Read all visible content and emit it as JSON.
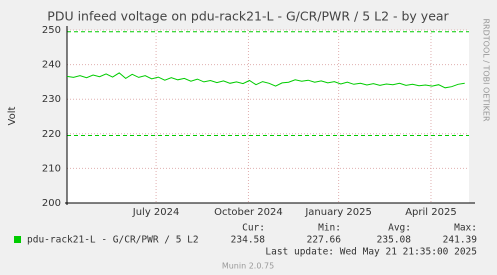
{
  "chart_data": {
    "type": "line",
    "title": "PDU infeed voltage on pdu-rack21-L - G/CR/PWR / 5 L2 - by year",
    "y_label": "Volt",
    "side_label": "RRDTOOL / TOBI OETIKER",
    "x": [
      0,
      6,
      12,
      18,
      24,
      30,
      36,
      42,
      48,
      54,
      60,
      66,
      72,
      78,
      84,
      90,
      96,
      102,
      108,
      114,
      120,
      126,
      132,
      138,
      144,
      150,
      156,
      162,
      168,
      174,
      180,
      186,
      192,
      198,
      204,
      210,
      216,
      222,
      228,
      234,
      240,
      246,
      252,
      258,
      264,
      270,
      276,
      282,
      288,
      294,
      300,
      306,
      312,
      318,
      324,
      330,
      336,
      342,
      348,
      354,
      360,
      366
    ],
    "series": [
      {
        "name": "pdu-rack21-L - G/CR/PWR / 5 L2",
        "color": "#00cc00",
        "values": [
          236.6,
          236.3,
          236.8,
          236.2,
          237.0,
          236.5,
          237.3,
          236.4,
          237.6,
          236.0,
          237.2,
          236.3,
          236.8,
          235.9,
          236.4,
          235.5,
          236.2,
          235.6,
          236.0,
          235.2,
          235.8,
          235.0,
          235.4,
          234.8,
          235.3,
          234.6,
          235.0,
          234.5,
          235.4,
          234.2,
          235.1,
          234.6,
          233.8,
          234.7,
          234.9,
          235.6,
          235.2,
          235.5,
          234.9,
          235.3,
          234.7,
          235.1,
          234.4,
          234.9,
          234.3,
          234.6,
          234.1,
          234.5,
          234.0,
          234.4,
          234.2,
          234.6,
          234.0,
          234.3,
          233.9,
          234.1,
          233.8,
          234.2,
          233.3,
          233.6,
          234.3,
          234.6
        ]
      }
    ],
    "thresholds": [
      249.5,
      219.5
    ],
    "threshold_color": "#00cc00",
    "xlim": [
      0,
      370
    ],
    "xticks": [
      {
        "value": 82,
        "label": "July 2024"
      },
      {
        "value": 167,
        "label": "October 2024"
      },
      {
        "value": 250,
        "label": "January 2025"
      },
      {
        "value": 335,
        "label": "April 2025"
      }
    ],
    "ylim": [
      200,
      250
    ],
    "yticks": [
      200,
      210,
      220,
      230,
      240,
      250
    ],
    "grid": true,
    "legend_headers": [
      "Cur:",
      "Min:",
      "Avg:",
      "Max:"
    ],
    "legend_stats": [
      "234.58",
      "227.66",
      "235.08",
      "241.39"
    ],
    "last_update": "Last update: Wed May 21 21:35:00 2025",
    "footer": "Munin 2.0.75"
  }
}
